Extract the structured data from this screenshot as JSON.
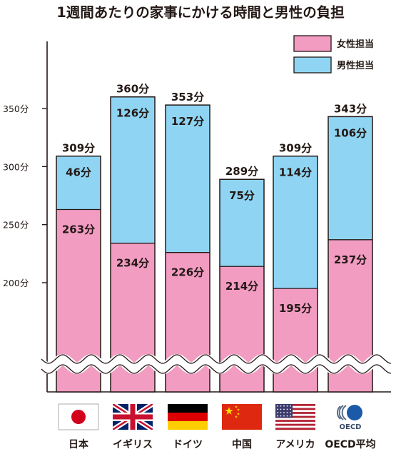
{
  "chart_data": {
    "type": "bar",
    "stacked": true,
    "title": "1週間あたりの家事にかける時間と男性の負担",
    "categories": [
      "日本",
      "イギリス",
      "ドイツ",
      "中国",
      "アメリカ",
      "OECD平均"
    ],
    "series": [
      {
        "name": "女性担当",
        "color": "#f29cc2",
        "values": [
          263,
          234,
          226,
          214,
          195,
          237
        ],
        "labels": [
          "263分",
          "234分",
          "226分",
          "214分",
          "195分",
          "237分"
        ]
      },
      {
        "name": "男性担当",
        "color": "#8fd5f3",
        "values": [
          46,
          126,
          127,
          75,
          114,
          106
        ],
        "labels": [
          "46分",
          "126分",
          "127分",
          "75分",
          "114分",
          "106分"
        ]
      }
    ],
    "totals": [
      309,
      360,
      353,
      289,
      309,
      343
    ],
    "total_labels": [
      "309分",
      "360分",
      "353分",
      "289分",
      "309分",
      "343分"
    ],
    "y_ticks": [
      200,
      250,
      300,
      350
    ],
    "y_tick_labels": [
      "200分",
      "250分",
      "300分",
      "350分"
    ],
    "axis_break": true,
    "legend_position": "top-right",
    "flags": [
      "japan",
      "uk",
      "germany",
      "china",
      "usa",
      "oecd-logo"
    ],
    "oecd_logo_text": "OECD"
  }
}
